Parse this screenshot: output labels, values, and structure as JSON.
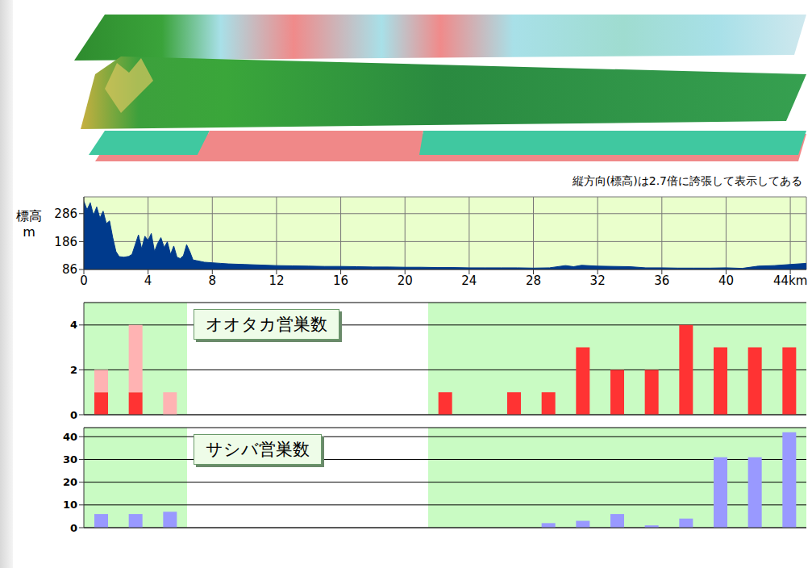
{
  "chart_data": [
    {
      "type": "area",
      "ylabel": "標高\nm",
      "annotations": [
        "縦方向(標高)は2.7倍に誇張して表示してある"
      ],
      "x": [
        0,
        0.2,
        0.4,
        0.6,
        0.8,
        1.0,
        1.2,
        1.4,
        1.6,
        1.8,
        2.0,
        2.2,
        2.5,
        2.8,
        3.0,
        3.2,
        3.4,
        3.6,
        3.8,
        4.0,
        4.2,
        4.4,
        4.6,
        4.8,
        5.0,
        5.2,
        5.4,
        5.6,
        5.8,
        6.0,
        6.2,
        6.4,
        6.6,
        6.8,
        7.0,
        7.5,
        8,
        8.5,
        9,
        10,
        11,
        12,
        13,
        14,
        15,
        16,
        17,
        18,
        19,
        20,
        21,
        22,
        23,
        24,
        25,
        26,
        27,
        28,
        29,
        30,
        30.5,
        31,
        32,
        33,
        34,
        35,
        36,
        37,
        38,
        39,
        40,
        41,
        42,
        43,
        44,
        45
      ],
      "values": [
        330,
        300,
        325,
        280,
        310,
        270,
        295,
        250,
        260,
        200,
        150,
        132,
        130,
        133,
        140,
        175,
        210,
        160,
        205,
        190,
        215,
        150,
        180,
        200,
        165,
        185,
        140,
        170,
        130,
        125,
        135,
        175,
        150,
        120,
        118,
        112,
        110,
        108,
        106,
        104,
        102,
        100,
        99,
        98,
        97,
        97,
        96,
        95,
        95,
        94,
        94,
        93,
        93,
        92,
        92,
        92,
        92,
        91,
        92,
        100,
        96,
        101,
        98,
        97,
        96,
        92,
        92,
        91,
        91,
        91,
        92,
        90,
        98,
        100,
        104,
        108
      ],
      "color": "#003a8c",
      "xlim": [
        0,
        45
      ],
      "xticks": [
        0,
        4,
        8,
        12,
        16,
        20,
        24,
        28,
        32,
        36,
        40,
        {
          "value": 44,
          "label": "44km"
        }
      ],
      "ylim": [
        86,
        346
      ],
      "yticks": [
        86,
        186,
        286
      ],
      "grid": true
    },
    {
      "type": "bar",
      "title": "オオタカ営巣数",
      "categories": [
        null,
        null,
        null,
        null,
        null,
        null,
        null,
        null,
        null,
        null,
        null,
        null,
        null,
        null,
        null,
        null,
        null,
        null,
        null,
        null,
        null
      ],
      "series": [
        {
          "color": "#ff3333",
          "values": [
            1,
            1,
            0,
            null,
            null,
            null,
            null,
            null,
            null,
            null,
            1,
            0,
            1,
            1,
            3,
            2,
            2,
            4,
            3,
            3,
            3
          ]
        },
        {
          "color": "#ffb3b3",
          "values": [
            1,
            3,
            1,
            null,
            null,
            null,
            null,
            null,
            null,
            null,
            null,
            null,
            null,
            null,
            null,
            null,
            null,
            null,
            null,
            null,
            null
          ]
        }
      ],
      "stacked": true,
      "ylim": [
        0,
        5
      ],
      "yticks": [
        0,
        2,
        4
      ],
      "grid": true,
      "tick_labels": "y"
    },
    {
      "type": "bar",
      "title": "サシバ営巣数",
      "categories": [
        null,
        null,
        null,
        null,
        null,
        null,
        null,
        null,
        null,
        null,
        null,
        null,
        null,
        null,
        null,
        null,
        null,
        null,
        null,
        null,
        null
      ],
      "values": [
        6,
        6,
        7,
        null,
        null,
        null,
        null,
        null,
        null,
        null,
        0,
        0,
        0,
        2,
        3,
        6,
        1,
        4,
        31,
        31,
        42
      ],
      "color": "#9999ff",
      "ylim": [
        0,
        44
      ],
      "yticks": [
        0,
        10,
        20,
        30,
        40
      ],
      "grid": true,
      "tick_labels": "y"
    }
  ]
}
